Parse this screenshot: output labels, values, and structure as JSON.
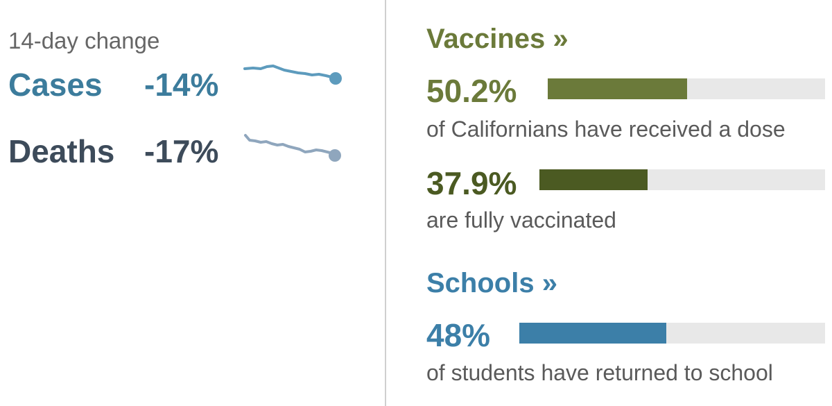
{
  "change": {
    "label": "14-day change",
    "cases": {
      "label": "Cases",
      "pct": "-14%",
      "color": "#3c7c9c"
    },
    "deaths": {
      "label": "Deaths",
      "pct": "-17%",
      "color": "#3d4b5a"
    }
  },
  "vaccines": {
    "title": "Vaccines »",
    "color": "#6b7a3a",
    "dose": {
      "pct": "50.2%",
      "fraction": 0.502,
      "desc": "of Californians have received a dose",
      "color": "#6b7a3a"
    },
    "full": {
      "pct": "37.9%",
      "fraction": 0.379,
      "desc": "are fully vaccinated",
      "color": "#4b5a22"
    }
  },
  "schools": {
    "title": "Schools »",
    "color": "#3c7fa8",
    "returned": {
      "pct": "48%",
      "fraction": 0.48,
      "desc": "of students have returned to school",
      "color": "#3c7fa8"
    }
  }
}
